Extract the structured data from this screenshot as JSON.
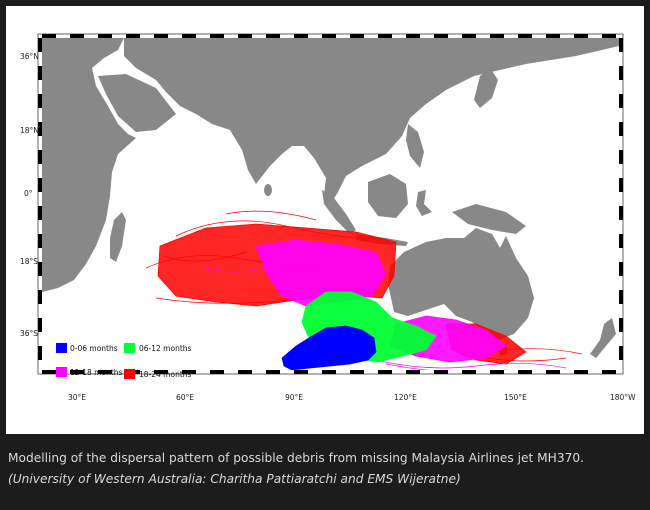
{
  "map": {
    "lat_ticks": [
      "36°N",
      "18°N",
      "0°",
      "18°S",
      "36°S"
    ],
    "lon_ticks": [
      "30°E",
      "60°E",
      "90°E",
      "120°E",
      "150°E",
      "180°W"
    ],
    "colors": {
      "ocean": "#ffffff",
      "land": "#888888",
      "c0_06": "#0000ff",
      "c06_12": "#00ff33",
      "c12_18": "#ff00ff",
      "c18_24": "#ff0000"
    },
    "legend": [
      {
        "label": "0-06 months",
        "color": "#0000ff"
      },
      {
        "label": "06-12 months",
        "color": "#00ff33"
      },
      {
        "label": "12-18 months",
        "color": "#ff00ff"
      },
      {
        "label": "18-24 months",
        "color": "#ff0000"
      }
    ]
  },
  "caption": {
    "text": "Modelling of the dispersal pattern of possible debris from missing Malaysia Airlines jet MH370.",
    "credit": "(University of Western Australia: Charitha Pattiaratchi and EMS Wijeratne)"
  }
}
